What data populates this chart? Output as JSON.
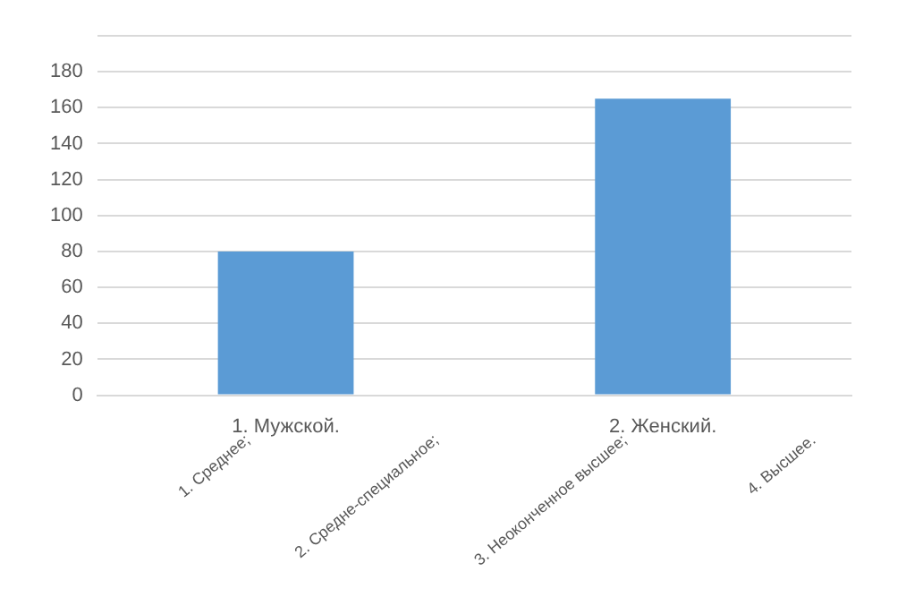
{
  "chart_data": {
    "type": "bar",
    "categories": [
      "1. Мужской.",
      "2. Женский."
    ],
    "values": [
      80,
      165
    ],
    "color": "#5b9bd5",
    "ylim": [
      0,
      200
    ],
    "yticks": [
      0,
      20,
      40,
      60,
      80,
      100,
      120,
      140,
      160,
      180,
      {
        "value": 200,
        "label": null
      }
    ],
    "grid": true,
    "annotations": [
      "1. Среднее;",
      "2. Средне-специальное;",
      "3. Неоконченное высшее;",
      "4. Высшее."
    ]
  }
}
